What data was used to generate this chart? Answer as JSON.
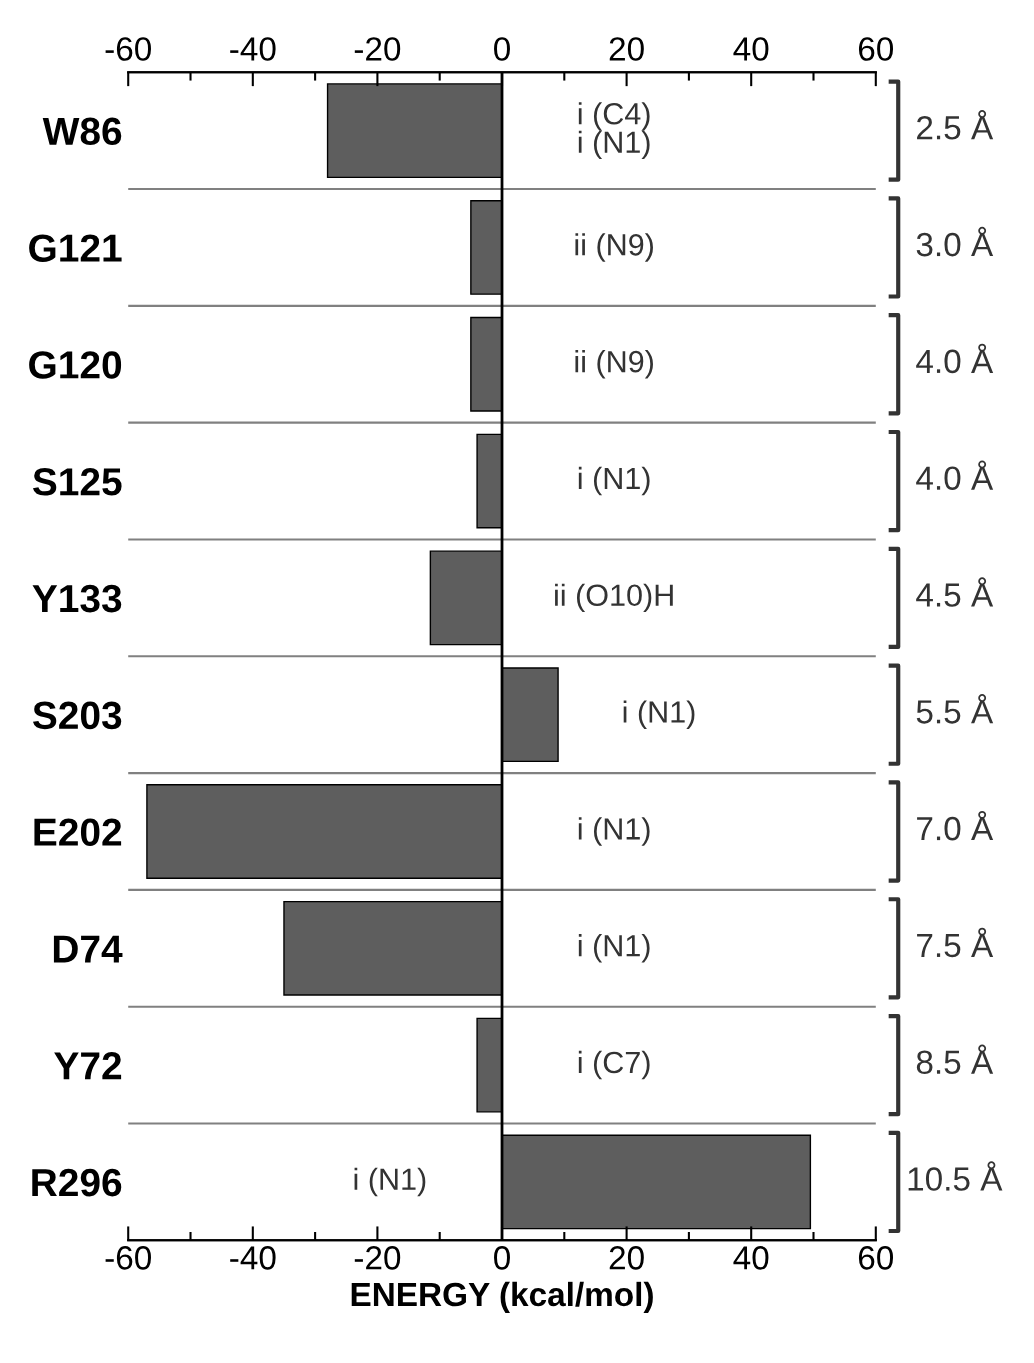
{
  "chart_data": {
    "type": "bar",
    "orientation": "horizontal",
    "xlabel": "ENERGY (kcal/mol)",
    "categories": [
      "W86",
      "G121",
      "G120",
      "S125",
      "Y133",
      "S203",
      "E202",
      "D74",
      "Y72",
      "R296"
    ],
    "values": [
      -28,
      -5,
      -5,
      -4,
      -11.5,
      9,
      -57,
      -35,
      -4,
      49.5
    ],
    "color": "#5e5e5e",
    "xlim": [
      -60,
      60
    ],
    "xticks": [
      -60,
      {
        "value": -50,
        "label": null
      },
      -40,
      {
        "value": -30,
        "label": null
      },
      -20,
      {
        "value": -10,
        "label": null
      },
      0,
      {
        "value": 10,
        "label": null
      },
      20,
      {
        "value": 30,
        "label": null
      },
      40,
      {
        "value": 50,
        "label": null
      },
      60
    ],
    "x2lim": [
      -60,
      60
    ],
    "x2ticks": [
      -60,
      {
        "value": -50,
        "label": null
      },
      -40,
      {
        "value": -30,
        "label": null
      },
      -20,
      {
        "value": -10,
        "label": null
      },
      0,
      {
        "value": 10,
        "label": null
      },
      20,
      {
        "value": 30,
        "label": null
      },
      40,
      {
        "value": 50,
        "label": null
      },
      60
    ],
    "ref_lines": [
      {
        "axis": "x",
        "value": 0,
        "color": "#000000"
      }
    ],
    "grid": false,
    "legend": false,
    "annotations": [
      "i (C4)\ni (N1)",
      "ii (N9)",
      "ii (N9)",
      "i (N1)",
      "ii (O10)H",
      "i (N1)",
      "i (N1)",
      "i (N1)",
      "i (C7)",
      "i (N1)",
      "2.5 Å",
      "3.0 Å",
      "4.0 Å",
      "4.0 Å",
      "4.5 Å",
      "5.5 Å",
      "7.0 Å",
      "7.5 Å",
      "8.5 Å",
      "10.5 Å"
    ]
  }
}
